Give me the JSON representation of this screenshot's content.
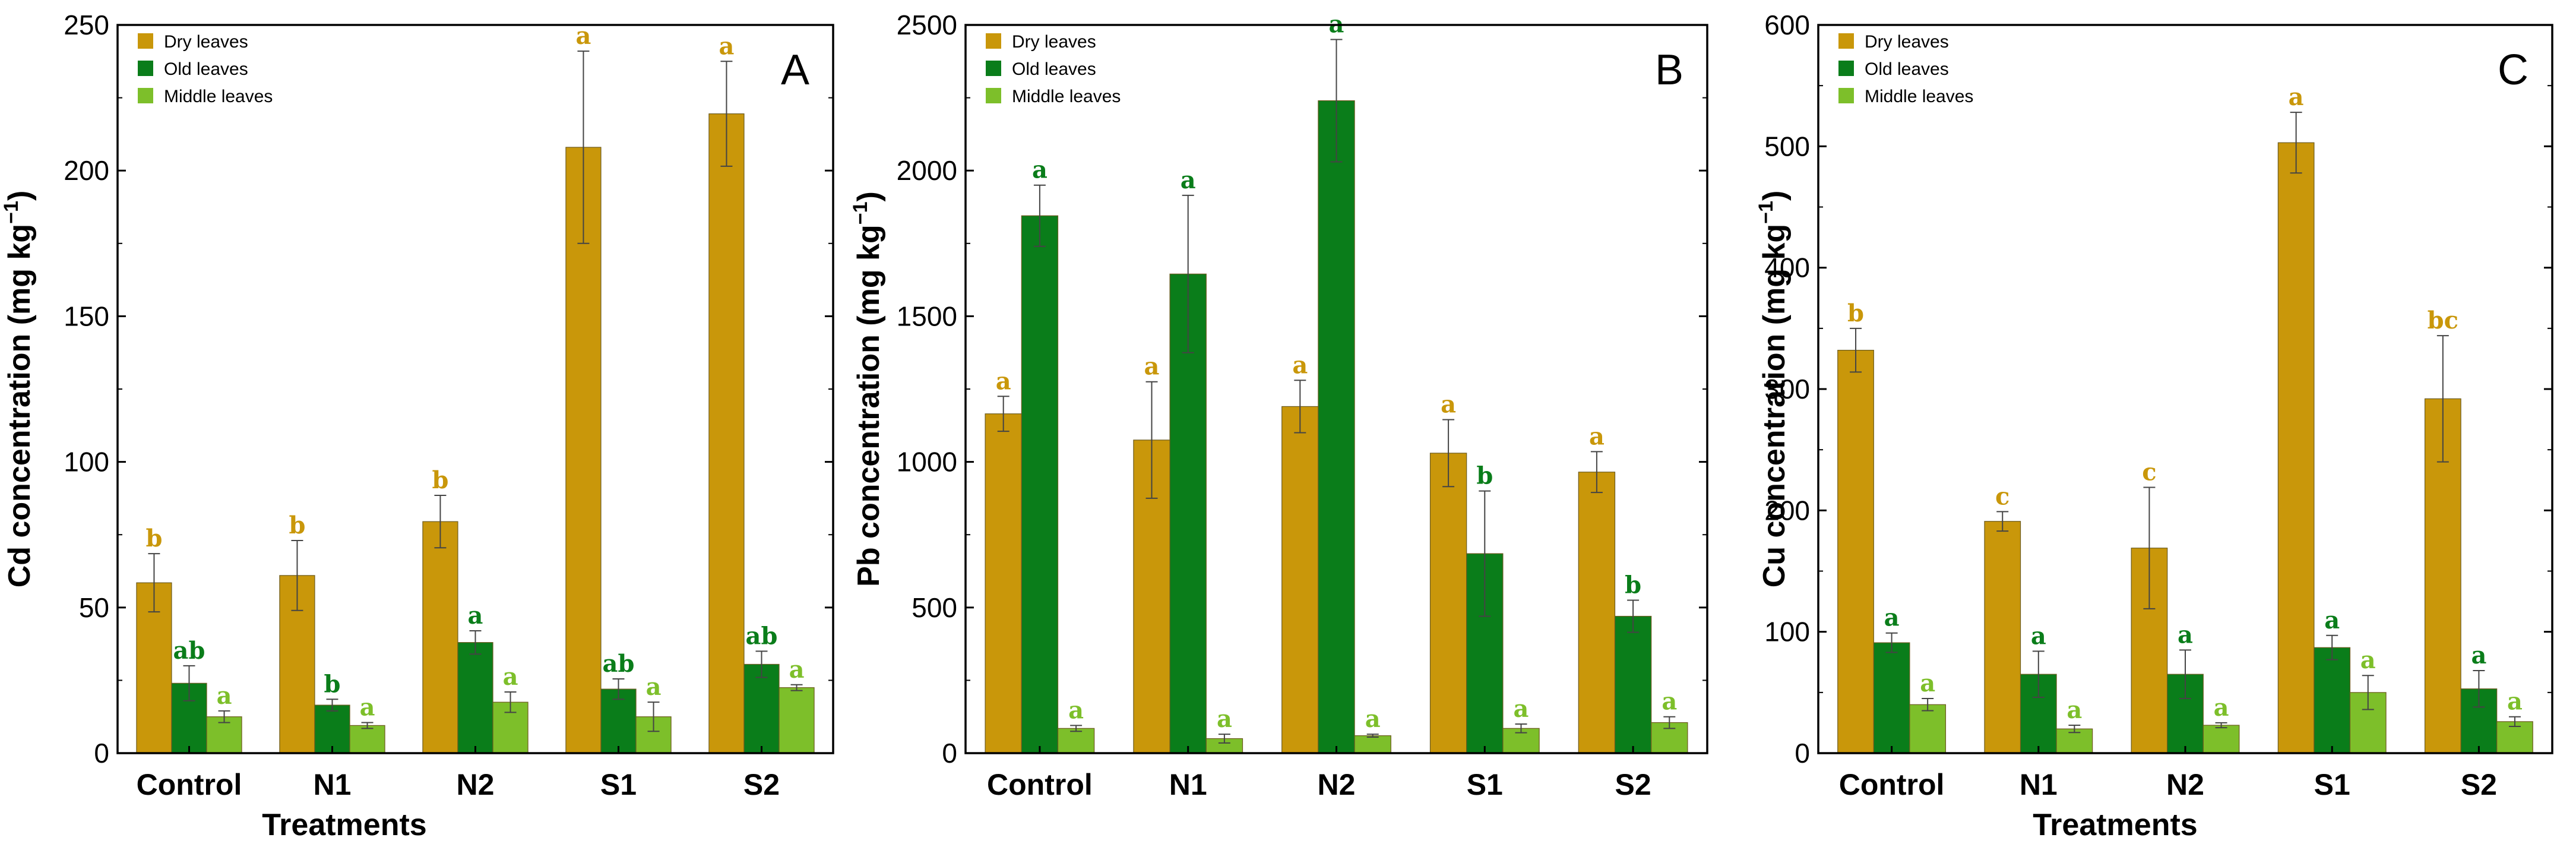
{
  "chart_data": [
    {
      "type": "bar",
      "panel": "A",
      "ylabel": "Cd concentration (mg kg",
      "ylabel_sup": "−1",
      "ylabel_end": ")",
      "xlabel": "Treatments",
      "ylim": [
        0,
        250
      ],
      "yticks": [
        "0",
        "50",
        "100",
        "150",
        "200",
        "250"
      ],
      "categories": [
        "Control",
        "N1",
        "N2",
        "S1",
        "S2"
      ],
      "series": [
        {
          "name": "Dry leaves",
          "color": "#C9970A",
          "values": [
            58.5,
            61,
            79.5,
            208,
            219.5
          ],
          "errors": [
            10,
            12,
            9,
            33,
            18
          ],
          "letters": [
            "b",
            "b",
            "b",
            "a",
            "a"
          ]
        },
        {
          "name": "Old leaves",
          "color": "#0A7D1A",
          "values": [
            24,
            16.5,
            38,
            22,
            30.5
          ],
          "errors": [
            6,
            2,
            4,
            3.5,
            4.5
          ],
          "letters": [
            "ab",
            "b",
            "a",
            "ab",
            "ab"
          ]
        },
        {
          "name": "Middle leaves",
          "color": "#7DBF2A",
          "values": [
            12.5,
            9.5,
            17.5,
            12.5,
            22.5
          ],
          "errors": [
            2,
            1,
            3.5,
            5,
            1
          ],
          "letters": [
            "a",
            "a",
            "a",
            "a",
            "a"
          ]
        }
      ],
      "legend": "top-left"
    },
    {
      "type": "bar",
      "panel": "B",
      "ylabel": "Pb concentration (mg kg",
      "ylabel_sup": "−1",
      "ylabel_end": ")",
      "xlabel": "",
      "ylim": [
        0,
        2500
      ],
      "yticks": [
        "0",
        "500",
        "1000",
        "1500",
        "2000",
        "2500"
      ],
      "categories": [
        "Control",
        "N1",
        "N2",
        "S1",
        "S2"
      ],
      "series": [
        {
          "name": "Dry leaves",
          "color": "#C9970A",
          "values": [
            1165,
            1075,
            1190,
            1030,
            965
          ],
          "errors": [
            60,
            200,
            90,
            115,
            70
          ],
          "letters": [
            "a",
            "a",
            "a",
            "a",
            "a"
          ]
        },
        {
          "name": "Old leaves",
          "color": "#0A7D1A",
          "values": [
            1845,
            1645,
            2240,
            685,
            470
          ],
          "errors": [
            105,
            270,
            210,
            215,
            55
          ],
          "letters": [
            "a",
            "a",
            "a",
            "b",
            "b"
          ]
        },
        {
          "name": "Middle leaves",
          "color": "#7DBF2A",
          "values": [
            85,
            50,
            60,
            85,
            105
          ],
          "errors": [
            10,
            15,
            5,
            15,
            20
          ],
          "letters": [
            "a",
            "a",
            "a",
            "a",
            "a"
          ]
        }
      ],
      "legend": "top-left"
    },
    {
      "type": "bar",
      "panel": "C",
      "ylabel": "Cu concentration (mg kg",
      "ylabel_sup": "−1",
      "ylabel_end": ")",
      "xlabel": "Treatments",
      "ylim": [
        0,
        600
      ],
      "yticks": [
        "0",
        "100",
        "200",
        "300",
        "400",
        "500",
        "600"
      ],
      "categories": [
        "Control",
        "N1",
        "N2",
        "S1",
        "S2"
      ],
      "series": [
        {
          "name": "Dry leaves",
          "color": "#C9970A",
          "values": [
            332,
            191,
            169,
            503,
            292
          ],
          "errors": [
            18,
            8,
            50,
            25,
            52
          ],
          "letters": [
            "b",
            "c",
            "c",
            "a",
            "bc"
          ]
        },
        {
          "name": "Old leaves",
          "color": "#0A7D1A",
          "values": [
            91,
            65,
            65,
            87,
            53
          ],
          "errors": [
            8,
            19,
            20,
            10,
            15
          ],
          "letters": [
            "a",
            "a",
            "a",
            "a",
            "a"
          ]
        },
        {
          "name": "Middle leaves",
          "color": "#7DBF2A",
          "values": [
            40,
            20,
            23,
            50,
            26
          ],
          "errors": [
            5,
            3,
            2,
            14,
            4
          ],
          "letters": [
            "a",
            "a",
            "a",
            "a",
            "a"
          ]
        }
      ],
      "legend": "top-left"
    }
  ]
}
